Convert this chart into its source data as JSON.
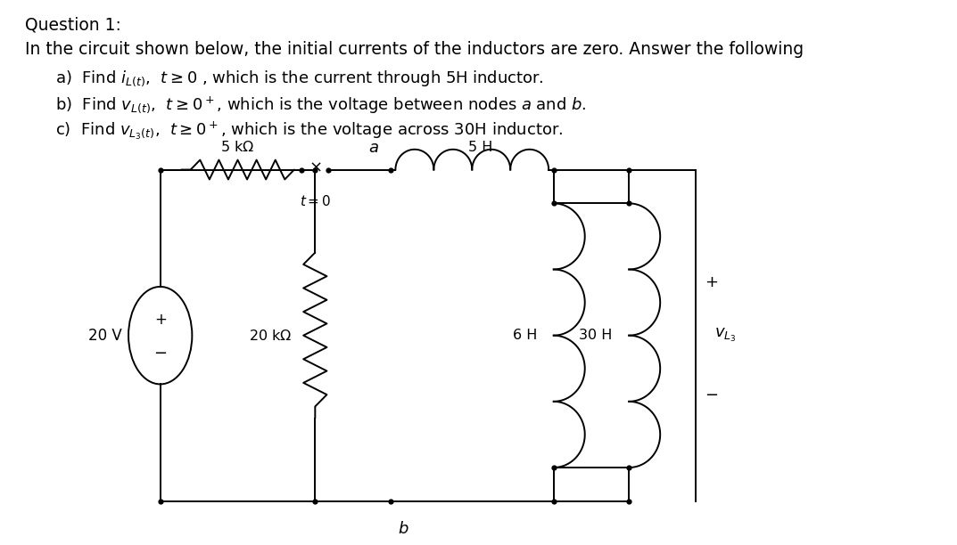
{
  "bg_color": "#ffffff",
  "line_color": "#000000",
  "text_color": "#000000",
  "title1": "Question 1:",
  "title2": "In the circuit shown below, the initial currents of the inductors are zero. Answer the following",
  "item_a": "a)  Find $i_{L(t)}$,  $t \\geq 0$ , which is the current through 5H inductor.",
  "item_b": "b)  Find $v_{L(t)}$,  $t \\geq 0^+$, which is the voltage between nodes $a$ and $b$.",
  "item_c": "c)  Find $v_{L_3(t)}$,  $t \\geq 0^+$, which is the voltage across 30H inductor.",
  "font_title": 13.5,
  "font_item": 13.0,
  "lw": 1.4
}
